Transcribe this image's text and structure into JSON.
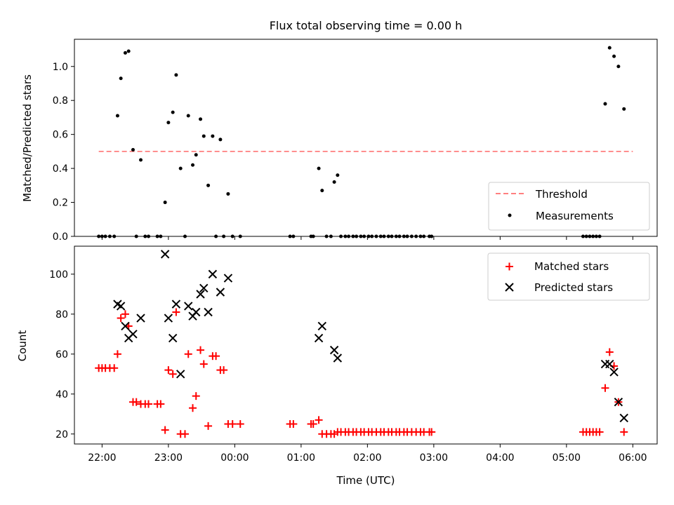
{
  "title": "Flux total observing time = 0.00 h",
  "chart_data": [
    {
      "type": "scatter",
      "panel": "top",
      "ylabel": "Matched/Predicted stars",
      "ylim": [
        0,
        1.16
      ],
      "xlim": [
        "21:35",
        "06:22"
      ],
      "yticks": [
        0.0,
        0.2,
        0.4,
        0.6,
        0.8,
        1.0
      ],
      "ytick_labels": [
        "0.0",
        "0.2",
        "0.4",
        "0.6",
        "0.8",
        "1.0"
      ],
      "legend_position": "lower right",
      "threshold": {
        "name": "Threshold",
        "value": 0.5,
        "from": "21:57",
        "to": "06:00",
        "color": "#ff7f7f",
        "style": "dashed"
      },
      "series": [
        {
          "name": "Measurements",
          "color": "#000000",
          "points": [
            [
              "21:57",
              0
            ],
            [
              "22:00",
              0
            ],
            [
              "22:03",
              0
            ],
            [
              "22:07",
              0
            ],
            [
              "22:11",
              0
            ],
            [
              "22:14",
              0.71
            ],
            [
              "22:17",
              0.93
            ],
            [
              "22:21",
              1.08
            ],
            [
              "22:24",
              1.09
            ],
            [
              "22:28",
              0.51
            ],
            [
              "22:31",
              0
            ],
            [
              "22:35",
              0.45
            ],
            [
              "22:39",
              0
            ],
            [
              "22:42",
              0
            ],
            [
              "22:50",
              0
            ],
            [
              "22:53",
              0
            ],
            [
              "22:57",
              0.2
            ],
            [
              "23:00",
              0.67
            ],
            [
              "23:04",
              0.73
            ],
            [
              "23:07",
              0.95
            ],
            [
              "23:11",
              0.4
            ],
            [
              "23:15",
              0
            ],
            [
              "23:18",
              0.71
            ],
            [
              "23:22",
              0.42
            ],
            [
              "23:25",
              0.48
            ],
            [
              "23:29",
              0.69
            ],
            [
              "23:32",
              0.59
            ],
            [
              "23:36",
              0.3
            ],
            [
              "23:40",
              0.59
            ],
            [
              "23:43",
              0
            ],
            [
              "23:47",
              0.57
            ],
            [
              "23:50",
              0
            ],
            [
              "23:54",
              0.25
            ],
            [
              "23:58",
              0
            ],
            [
              "00:05",
              0
            ],
            [
              "00:50",
              0
            ],
            [
              "00:53",
              0
            ],
            [
              "01:09",
              0
            ],
            [
              "01:11",
              0
            ],
            [
              "01:16",
              0.4
            ],
            [
              "01:19",
              0.27
            ],
            [
              "01:23",
              0
            ],
            [
              "01:27",
              0
            ],
            [
              "01:30",
              0.32
            ],
            [
              "01:33",
              0.36
            ],
            [
              "01:36",
              0
            ],
            [
              "01:40",
              0
            ],
            [
              "01:43",
              0
            ],
            [
              "01:47",
              0
            ],
            [
              "01:50",
              0
            ],
            [
              "01:54",
              0
            ],
            [
              "01:57",
              0
            ],
            [
              "02:01",
              0
            ],
            [
              "02:04",
              0
            ],
            [
              "02:08",
              0
            ],
            [
              "02:12",
              0
            ],
            [
              "02:15",
              0
            ],
            [
              "02:19",
              0
            ],
            [
              "02:22",
              0
            ],
            [
              "02:26",
              0
            ],
            [
              "02:29",
              0
            ],
            [
              "02:33",
              0
            ],
            [
              "02:36",
              0
            ],
            [
              "02:40",
              0
            ],
            [
              "02:44",
              0
            ],
            [
              "02:48",
              0
            ],
            [
              "02:51",
              0
            ],
            [
              "02:56",
              0
            ],
            [
              "02:58",
              0
            ],
            [
              "05:15",
              0
            ],
            [
              "05:18",
              0
            ],
            [
              "05:21",
              0
            ],
            [
              "05:24",
              0
            ],
            [
              "05:27",
              0
            ],
            [
              "05:30",
              0
            ],
            [
              "05:35",
              0.78
            ],
            [
              "05:39",
              1.11
            ],
            [
              "05:43",
              1.06
            ],
            [
              "05:47",
              1.0
            ],
            [
              "05:52",
              0.75
            ]
          ]
        }
      ]
    },
    {
      "type": "scatter",
      "panel": "bottom",
      "xlabel": "Time (UTC)",
      "ylabel": "Count",
      "ylim": [
        15,
        114
      ],
      "xlim": [
        "21:35",
        "06:22"
      ],
      "yticks": [
        20,
        40,
        60,
        80,
        100
      ],
      "ytick_labels": [
        "20",
        "40",
        "60",
        "80",
        "100"
      ],
      "xticks": [
        "22:00",
        "23:00",
        "00:00",
        "01:00",
        "02:00",
        "03:00",
        "04:00",
        "05:00",
        "06:00"
      ],
      "xtick_labels": [
        "22:00",
        "23:00",
        "00:00",
        "01:00",
        "02:00",
        "03:00",
        "04:00",
        "05:00",
        "06:00"
      ],
      "legend_position": "upper right",
      "series": [
        {
          "name": "Matched stars",
          "marker": "plus",
          "color": "#ff0000",
          "points": [
            [
              "21:57",
              53
            ],
            [
              "22:00",
              53
            ],
            [
              "22:03",
              53
            ],
            [
              "22:07",
              53
            ],
            [
              "22:11",
              53
            ],
            [
              "22:14",
              60
            ],
            [
              "22:17",
              78
            ],
            [
              "22:21",
              80
            ],
            [
              "22:24",
              74
            ],
            [
              "22:28",
              36
            ],
            [
              "22:31",
              36
            ],
            [
              "22:35",
              35
            ],
            [
              "22:39",
              35
            ],
            [
              "22:42",
              35
            ],
            [
              "22:50",
              35
            ],
            [
              "22:53",
              35
            ],
            [
              "22:57",
              22
            ],
            [
              "23:00",
              52
            ],
            [
              "23:04",
              50
            ],
            [
              "23:07",
              81
            ],
            [
              "23:11",
              20
            ],
            [
              "23:15",
              20
            ],
            [
              "23:18",
              60
            ],
            [
              "23:22",
              33
            ],
            [
              "23:25",
              39
            ],
            [
              "23:29",
              62
            ],
            [
              "23:32",
              55
            ],
            [
              "23:36",
              24
            ],
            [
              "23:40",
              59
            ],
            [
              "23:43",
              59
            ],
            [
              "23:47",
              52
            ],
            [
              "23:50",
              52
            ],
            [
              "23:54",
              25
            ],
            [
              "23:58",
              25
            ],
            [
              "00:05",
              25
            ],
            [
              "00:50",
              25
            ],
            [
              "00:53",
              25
            ],
            [
              "01:09",
              25
            ],
            [
              "01:11",
              25
            ],
            [
              "01:16",
              27
            ],
            [
              "01:19",
              20
            ],
            [
              "01:23",
              20
            ],
            [
              "01:27",
              20
            ],
            [
              "01:30",
              20
            ],
            [
              "01:33",
              21
            ],
            [
              "01:36",
              21
            ],
            [
              "01:40",
              21
            ],
            [
              "01:43",
              21
            ],
            [
              "01:47",
              21
            ],
            [
              "01:50",
              21
            ],
            [
              "01:54",
              21
            ],
            [
              "01:57",
              21
            ],
            [
              "02:01",
              21
            ],
            [
              "02:04",
              21
            ],
            [
              "02:08",
              21
            ],
            [
              "02:12",
              21
            ],
            [
              "02:15",
              21
            ],
            [
              "02:19",
              21
            ],
            [
              "02:22",
              21
            ],
            [
              "02:26",
              21
            ],
            [
              "02:29",
              21
            ],
            [
              "02:33",
              21
            ],
            [
              "02:36",
              21
            ],
            [
              "02:40",
              21
            ],
            [
              "02:44",
              21
            ],
            [
              "02:48",
              21
            ],
            [
              "02:51",
              21
            ],
            [
              "02:56",
              21
            ],
            [
              "02:58",
              21
            ],
            [
              "05:15",
              21
            ],
            [
              "05:18",
              21
            ],
            [
              "05:21",
              21
            ],
            [
              "05:24",
              21
            ],
            [
              "05:27",
              21
            ],
            [
              "05:30",
              21
            ],
            [
              "05:35",
              43
            ],
            [
              "05:39",
              61
            ],
            [
              "05:43",
              54
            ],
            [
              "05:47",
              36
            ],
            [
              "05:52",
              21
            ]
          ]
        },
        {
          "name": "Predicted stars",
          "marker": "x",
          "color": "#000000",
          "points": [
            [
              "22:14",
              85
            ],
            [
              "22:17",
              84
            ],
            [
              "22:21",
              74
            ],
            [
              "22:24",
              68
            ],
            [
              "22:28",
              70
            ],
            [
              "22:35",
              78
            ],
            [
              "22:57",
              110
            ],
            [
              "23:00",
              78
            ],
            [
              "23:04",
              68
            ],
            [
              "23:07",
              85
            ],
            [
              "23:11",
              50
            ],
            [
              "23:18",
              84
            ],
            [
              "23:22",
              79
            ],
            [
              "23:25",
              81
            ],
            [
              "23:29",
              90
            ],
            [
              "23:32",
              93
            ],
            [
              "23:36",
              81
            ],
            [
              "23:40",
              100
            ],
            [
              "23:47",
              91
            ],
            [
              "23:54",
              98
            ],
            [
              "01:16",
              68
            ],
            [
              "01:19",
              74
            ],
            [
              "01:30",
              62
            ],
            [
              "01:33",
              58
            ],
            [
              "05:35",
              55
            ],
            [
              "05:39",
              55
            ],
            [
              "05:43",
              51
            ],
            [
              "05:47",
              36
            ],
            [
              "05:52",
              28
            ]
          ]
        }
      ]
    }
  ]
}
